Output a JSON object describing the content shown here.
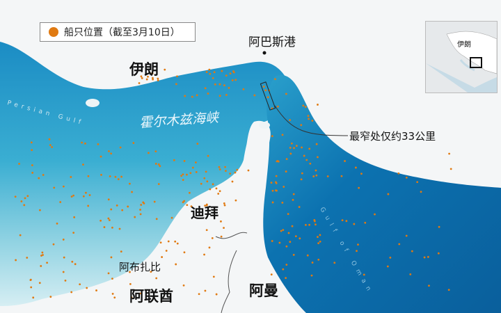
{
  "legend": {
    "label": "船只位置（截至3月10日）",
    "marker_color": "#e07a12"
  },
  "labels": {
    "iran": "伊朗",
    "bandar_abbas": "阿巴斯港",
    "strait": "霍尔木兹海峡",
    "narrowest": "最窄处仅约33公里",
    "dubai": "迪拜",
    "abu_dhabi": "阿布扎比",
    "uae": "阿联酋",
    "oman": "阿曼",
    "persian_gulf": "Persian Gulf",
    "gulf_of_oman": "Gulf of Oman"
  },
  "inset": {
    "label": "伊朗"
  },
  "colors": {
    "deep_water": "#0a6fae",
    "shallow_water": "#3fb0d0",
    "land": "#f4f6f7",
    "ships": "#e07a12"
  }
}
